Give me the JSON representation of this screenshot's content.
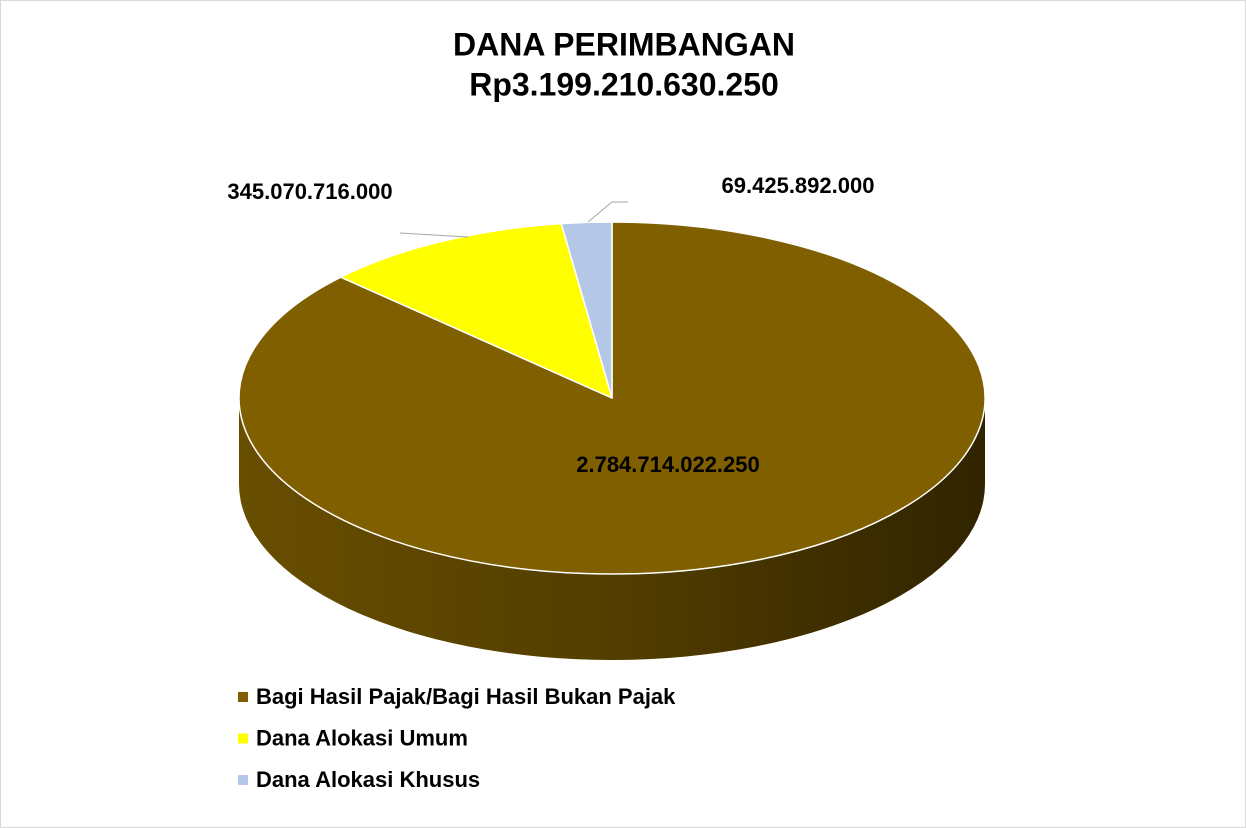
{
  "chart_data": {
    "type": "pie3d",
    "title": "DANA PERIMBANGAN",
    "subtitle": "Rp3.199.210.630.250",
    "categories": [
      "Bagi Hasil Pajak/Bagi Hasil Bukan Pajak",
      "Dana Alokasi Umum",
      "Dana Alokasi Khusus"
    ],
    "values": [
      2784714022250,
      345070716000,
      69425892000
    ],
    "value_labels": [
      "2.784.714.022.250",
      "345.070.716.000",
      "69.425.892.000"
    ],
    "colors": [
      "#7f5f00",
      "#ffff00",
      "#b4c7e7"
    ],
    "legend": "bottom-left"
  }
}
